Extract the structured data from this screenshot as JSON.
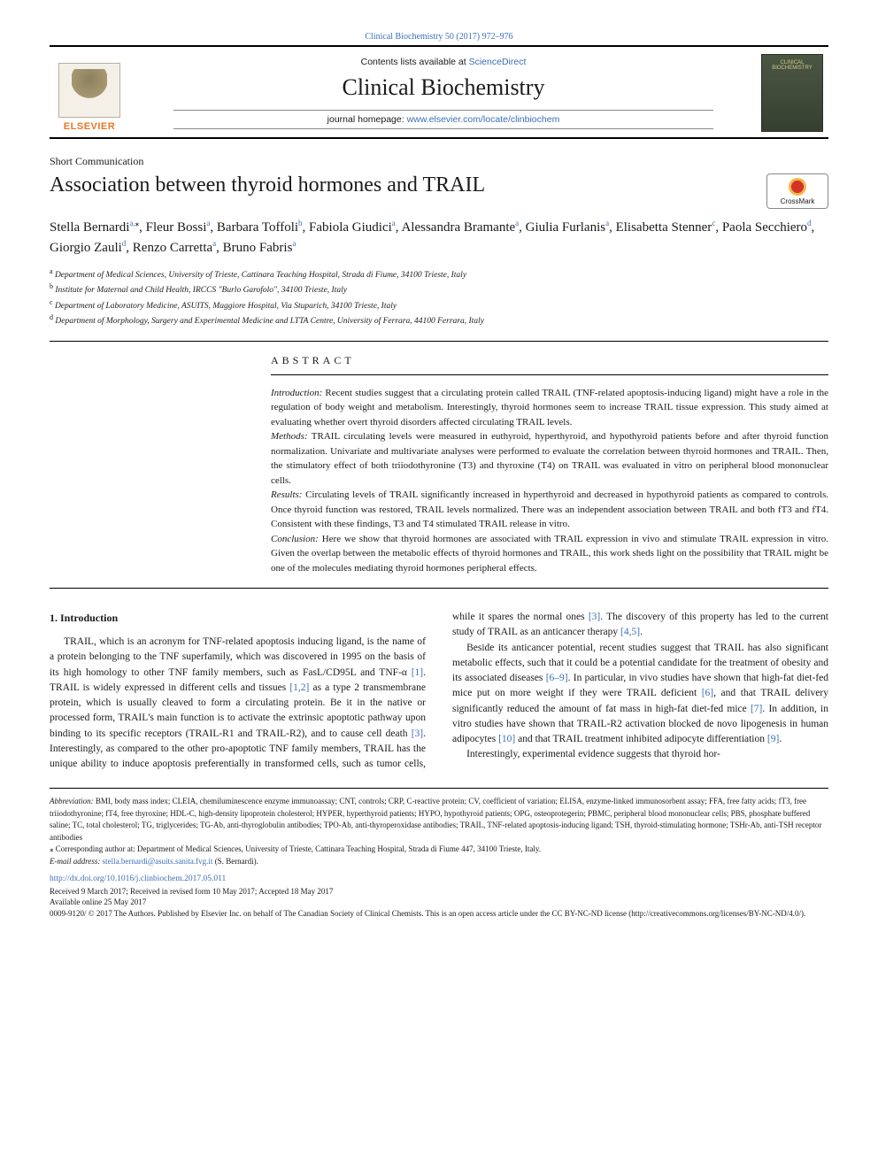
{
  "top_citation": "Clinical Biochemistry 50 (2017) 972–976",
  "banner": {
    "contents_prefix": "Contents lists available at ",
    "contents_link": "ScienceDirect",
    "journal_name": "Clinical Biochemistry",
    "homepage_prefix": "journal homepage: ",
    "homepage_link": "www.elsevier.com/locate/clinbiochem",
    "elsevier_label": "ELSEVIER",
    "cover_text": "CLINICAL BIOCHEMISTRY"
  },
  "article_type": "Short Communication",
  "title": "Association between thyroid hormones and TRAIL",
  "crossmark_label": "CrossMark",
  "authors": [
    {
      "name": "Stella Bernardi",
      "aff": "a",
      "corr": true
    },
    {
      "name": "Fleur Bossi",
      "aff": "a"
    },
    {
      "name": "Barbara Toffoli",
      "aff": "b"
    },
    {
      "name": "Fabiola Giudici",
      "aff": "a"
    },
    {
      "name": "Alessandra Bramante",
      "aff": "a"
    },
    {
      "name": "Giulia Furlanis",
      "aff": "a"
    },
    {
      "name": "Elisabetta Stenner",
      "aff": "c"
    },
    {
      "name": "Paola Secchiero",
      "aff": "d"
    },
    {
      "name": "Giorgio Zauli",
      "aff": "d"
    },
    {
      "name": "Renzo Carretta",
      "aff": "a"
    },
    {
      "name": "Bruno Fabris",
      "aff": "a"
    }
  ],
  "affiliations": {
    "a": "Department of Medical Sciences, University of Trieste, Cattinara Teaching Hospital, Strada di Fiume, 34100 Trieste, Italy",
    "b": "Institute for Maternal and Child Health, IRCCS \"Burlo Garofolo\", 34100 Trieste, Italy",
    "c": "Department of Laboratory Medicine, ASUITS, Maggiore Hospital, Via Stuparich, 34100 Trieste, Italy",
    "d": "Department of Morphology, Surgery and Experimental Medicine and LTTA Centre, University of Ferrara, 44100 Ferrara, Italy"
  },
  "abstract": {
    "heading": "ABSTRACT",
    "segments": [
      {
        "label": "Introduction:",
        "text": " Recent studies suggest that a circulating protein called TRAIL (TNF-related apoptosis-inducing ligand) might have a role in the regulation of body weight and metabolism. Interestingly, thyroid hormones seem to increase TRAIL tissue expression. This study aimed at evaluating whether overt thyroid disorders affected circulating TRAIL levels."
      },
      {
        "label": "Methods:",
        "text": " TRAIL circulating levels were measured in euthyroid, hyperthyroid, and hypothyroid patients before and after thyroid function normalization. Univariate and multivariate analyses were performed to evaluate the correlation between thyroid hormones and TRAIL. Then, the stimulatory effect of both triiodothyronine (T3) and thyroxine (T4) on TRAIL was evaluated in vitro on peripheral blood mononuclear cells."
      },
      {
        "label": "Results:",
        "text": " Circulating levels of TRAIL significantly increased in hyperthyroid and decreased in hypothyroid patients as compared to controls. Once thyroid function was restored, TRAIL levels normalized. There was an independent association between TRAIL and both fT3 and fT4. Consistent with these findings, T3 and T4 stimulated TRAIL release in vitro."
      },
      {
        "label": "Conclusion:",
        "text": " Here we show that thyroid hormones are associated with TRAIL expression in vivo and stimulate TRAIL expression in vitro. Given the overlap between the metabolic effects of thyroid hormones and TRAIL, this work sheds light on the possibility that TRAIL might be one of the molecules mediating thyroid hormones peripheral effects."
      }
    ]
  },
  "body": {
    "section_heading": "1. Introduction",
    "p1a": "TRAIL, which is an acronym for TNF-related apoptosis inducing ligand, is the name of a protein belonging to the TNF superfamily, which was discovered in 1995 on the basis of its high homology to other TNF family members, such as FasL/CD95L and TNF-α ",
    "c1": "[1]",
    "p1b": ". TRAIL is widely expressed in different cells and tissues ",
    "c2": "[1,2]",
    "p1c": " as a type 2 transmembrane protein, which is usually cleaved to form a circulating protein. Be it in the native or processed form, TRAIL's main function is to activate the extrinsic apoptotic pathway upon binding to its specific receptors (TRAIL-R1 and TRAIL-R2), and to cause cell death ",
    "c3": "[3]",
    "p1d": ". Interestingly, as compared to the other pro-apoptotic TNF family members, TRAIL has the unique ability to induce apoptosis preferen",
    "p1e": "tially in transformed cells, such as tumor cells, while it spares the normal ones ",
    "c3b": "[3]",
    "p1f": ". The discovery of this property has led to the current study of TRAIL as an anticancer therapy ",
    "c4": "[4,5]",
    "p1g": ".",
    "p2a": "Beside its anticancer potential, recent studies suggest that TRAIL has also significant metabolic effects, such that it could be a potential candidate for the treatment of obesity and its associated diseases ",
    "c5": "[6–9]",
    "p2b": ". In particular, in vivo studies have shown that high-fat diet-fed mice put on more weight if they were TRAIL deficient ",
    "c6": "[6]",
    "p2c": ", and that TRAIL delivery significantly reduced the amount of fat mass in high-fat diet-fed mice ",
    "c7": "[7]",
    "p2d": ". In addition, in vitro studies have shown that TRAIL-R2 activation blocked de novo lipogenesis in human adipocytes ",
    "c8": "[10]",
    "p2e": " and that TRAIL treatment inhibited adipocyte differentiation ",
    "c9": "[9]",
    "p2f": ".",
    "p3": "Interestingly, experimental evidence suggests that thyroid hor-"
  },
  "footnotes": {
    "abbrev_label": "Abbreviation:",
    "abbrev_text": " BMI, body mass index; CLEIA, chemiluminescence enzyme immunoassay; CNT, controls; CRP, C-reactive protein; CV, coefficient of variation; ELISA, enzyme-linked immunosorbent assay; FFA, free fatty acids; fT3, free triiodothyronine; fT4, free thyroxine; HDL-C, high-density lipoprotein cholesterol; HYPER, hyperthyroid patients; HYPO, hypothyroid patients; OPG, osteoprotegerin; PBMC, peripheral blood mononuclear cells; PBS, phosphate buffered saline; TC, total cholesterol; TG, triglycerides; TG-Ab, anti-thyroglobulin antibodies; TPO-Ab, anti-thyroperoxidase antibodies; TRAIL, TNF-related apoptosis-inducing ligand; TSH, thyroid-stimulating hormone; TSHr-Ab, anti-TSH receptor antibodies",
    "corr": "⁎ Corresponding author at: Department of Medical Sciences, University of Trieste, Cattinara Teaching Hospital, Strada di Fiume 447, 34100 Trieste, Italy.",
    "email_label": "E-mail address: ",
    "email": "stella.bernardi@asuits.sanita.fvg.it",
    "email_suffix": " (S. Bernardi).",
    "doi": "http://dx.doi.org/10.1016/j.clinbiochem.2017.05.011",
    "history1": "Received 9 March 2017; Received in revised form 10 May 2017; Accepted 18 May 2017",
    "history2": "Available online 25 May 2017",
    "copyright": "0009-9120/ © 2017 The Authors. Published by Elsevier Inc. on behalf of The Canadian Society of Clinical Chemists. This is an open access article under the CC BY-NC-ND license (http://creativecommons.org/licenses/BY-NC-ND/4.0/)."
  },
  "colors": {
    "link": "#3a6fb7",
    "elsevier_orange": "#e87722",
    "text": "#1a1a1a",
    "rule": "#000000"
  },
  "typography": {
    "title_fontsize": 24,
    "journal_fontsize": 26,
    "authors_fontsize": 15,
    "body_fontsize": 11.5,
    "abstract_fontsize": 11,
    "footnote_fontsize": 9
  }
}
